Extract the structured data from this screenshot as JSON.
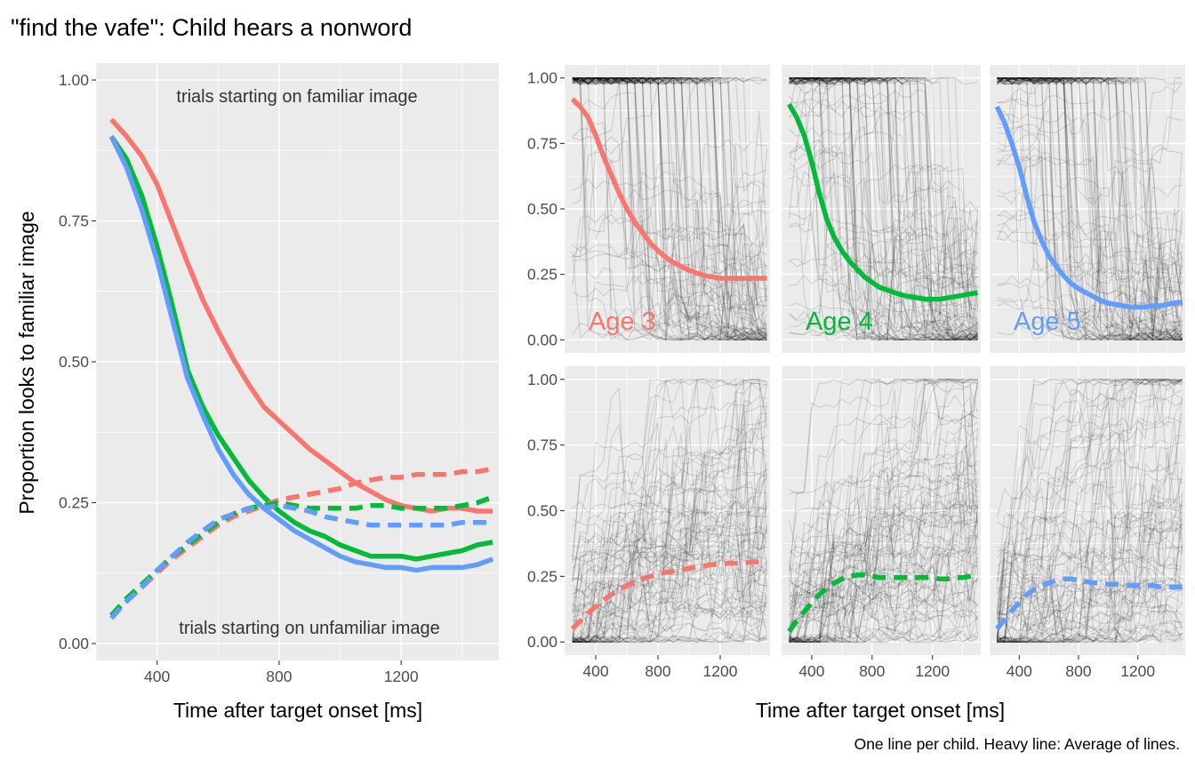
{
  "title": "\"find the vafe\": Child hears a nonword",
  "caption": "One line per child. Heavy line: Average of lines.",
  "colors": {
    "age3": "#F8766D",
    "age4": "#00BA38",
    "age5": "#619CFF"
  },
  "chart_data": [
    {
      "type": "line",
      "panel": "left",
      "xlabel": "Time after target onset [ms]",
      "ylabel": "Proportion looks to familiar image",
      "xlim": [
        200,
        1520
      ],
      "ylim": [
        -0.03,
        1.03
      ],
      "x_ticks": [
        "400",
        "800",
        "1200"
      ],
      "y_ticks": [
        "0.00",
        "0.25",
        "0.50",
        "0.75",
        "1.00"
      ],
      "annotations": [
        "trials starting on familiar image",
        "trials starting on unfamiliar image"
      ],
      "x": [
        250,
        300,
        350,
        400,
        450,
        500,
        550,
        600,
        650,
        700,
        750,
        800,
        850,
        900,
        950,
        1000,
        1050,
        1100,
        1150,
        1200,
        1250,
        1300,
        1350,
        1400,
        1450,
        1500
      ],
      "series": [
        {
          "group": "age3",
          "start": "familiar",
          "style": "solid",
          "values": [
            0.93,
            0.9,
            0.865,
            0.815,
            0.745,
            0.675,
            0.61,
            0.555,
            0.505,
            0.46,
            0.42,
            0.395,
            0.37,
            0.345,
            0.325,
            0.305,
            0.285,
            0.27,
            0.255,
            0.245,
            0.24,
            0.235,
            0.24,
            0.24,
            0.235,
            0.235
          ]
        },
        {
          "group": "age4",
          "start": "familiar",
          "style": "solid",
          "values": [
            0.9,
            0.86,
            0.795,
            0.705,
            0.6,
            0.485,
            0.42,
            0.37,
            0.33,
            0.29,
            0.26,
            0.235,
            0.215,
            0.2,
            0.19,
            0.175,
            0.165,
            0.155,
            0.155,
            0.155,
            0.15,
            0.155,
            0.16,
            0.165,
            0.175,
            0.18
          ]
        },
        {
          "group": "age5",
          "start": "familiar",
          "style": "solid",
          "values": [
            0.9,
            0.845,
            0.77,
            0.68,
            0.575,
            0.47,
            0.405,
            0.345,
            0.3,
            0.265,
            0.24,
            0.22,
            0.2,
            0.185,
            0.17,
            0.155,
            0.145,
            0.14,
            0.135,
            0.135,
            0.13,
            0.135,
            0.135,
            0.135,
            0.14,
            0.15
          ]
        },
        {
          "group": "age3",
          "start": "unfamiliar",
          "style": "dashed",
          "values": [
            0.05,
            0.075,
            0.1,
            0.125,
            0.15,
            0.17,
            0.19,
            0.21,
            0.225,
            0.235,
            0.245,
            0.255,
            0.26,
            0.265,
            0.27,
            0.275,
            0.285,
            0.29,
            0.295,
            0.295,
            0.3,
            0.3,
            0.3,
            0.305,
            0.305,
            0.31
          ]
        },
        {
          "group": "age4",
          "start": "unfamiliar",
          "style": "dashed",
          "values": [
            0.05,
            0.08,
            0.105,
            0.13,
            0.155,
            0.175,
            0.195,
            0.215,
            0.23,
            0.24,
            0.245,
            0.25,
            0.245,
            0.24,
            0.24,
            0.24,
            0.24,
            0.245,
            0.245,
            0.24,
            0.24,
            0.24,
            0.24,
            0.245,
            0.25,
            0.26
          ]
        },
        {
          "group": "age5",
          "start": "unfamiliar",
          "style": "dashed",
          "values": [
            0.045,
            0.075,
            0.1,
            0.13,
            0.155,
            0.18,
            0.2,
            0.22,
            0.23,
            0.24,
            0.24,
            0.245,
            0.24,
            0.235,
            0.225,
            0.22,
            0.215,
            0.21,
            0.21,
            0.21,
            0.21,
            0.21,
            0.21,
            0.215,
            0.215,
            0.215
          ]
        }
      ]
    },
    {
      "type": "line",
      "panel": "faceted",
      "xlabel": "Time after target onset [ms]",
      "xlim": [
        200,
        1520
      ],
      "ylim": [
        -0.05,
        1.05
      ],
      "x_ticks": [
        "400",
        "800",
        "1200"
      ],
      "y_ticks": [
        "0.00",
        "0.25",
        "0.50",
        "0.75",
        "1.00"
      ],
      "facet_labels": [
        "Age 3",
        "Age 4",
        "Age 5"
      ],
      "individual_lines": "One thin grey line per child",
      "x": [
        250,
        300,
        350,
        400,
        450,
        500,
        550,
        600,
        650,
        700,
        750,
        800,
        850,
        900,
        950,
        1000,
        1050,
        1100,
        1150,
        1200,
        1250,
        1300,
        1350,
        1400,
        1450,
        1500
      ],
      "series": [
        {
          "group": "age3",
          "row": "familiar",
          "style": "solid",
          "values": [
            0.92,
            0.89,
            0.85,
            0.78,
            0.7,
            0.63,
            0.56,
            0.5,
            0.45,
            0.41,
            0.37,
            0.34,
            0.315,
            0.295,
            0.28,
            0.265,
            0.255,
            0.245,
            0.24,
            0.235,
            0.235,
            0.235,
            0.235,
            0.235,
            0.235,
            0.235
          ]
        },
        {
          "group": "age4",
          "row": "familiar",
          "style": "solid",
          "values": [
            0.9,
            0.85,
            0.78,
            0.68,
            0.56,
            0.46,
            0.39,
            0.34,
            0.3,
            0.27,
            0.24,
            0.22,
            0.2,
            0.19,
            0.18,
            0.17,
            0.165,
            0.16,
            0.155,
            0.155,
            0.155,
            0.16,
            0.165,
            0.17,
            0.175,
            0.18
          ]
        },
        {
          "group": "age5",
          "row": "familiar",
          "style": "solid",
          "values": [
            0.89,
            0.83,
            0.75,
            0.66,
            0.55,
            0.45,
            0.38,
            0.32,
            0.28,
            0.245,
            0.215,
            0.195,
            0.18,
            0.165,
            0.15,
            0.14,
            0.135,
            0.13,
            0.125,
            0.125,
            0.125,
            0.13,
            0.13,
            0.135,
            0.14,
            0.145
          ]
        },
        {
          "group": "age3",
          "row": "unfamiliar",
          "style": "dashed",
          "values": [
            0.05,
            0.08,
            0.11,
            0.135,
            0.16,
            0.18,
            0.2,
            0.215,
            0.23,
            0.24,
            0.25,
            0.26,
            0.265,
            0.27,
            0.275,
            0.28,
            0.285,
            0.29,
            0.295,
            0.295,
            0.3,
            0.3,
            0.3,
            0.305,
            0.305,
            0.305
          ]
        },
        {
          "group": "age4",
          "row": "unfamiliar",
          "style": "dashed",
          "values": [
            0.04,
            0.08,
            0.115,
            0.15,
            0.18,
            0.205,
            0.225,
            0.24,
            0.25,
            0.255,
            0.255,
            0.25,
            0.245,
            0.245,
            0.245,
            0.245,
            0.245,
            0.245,
            0.245,
            0.245,
            0.24,
            0.24,
            0.245,
            0.245,
            0.25,
            0.255
          ]
        },
        {
          "group": "age5",
          "row": "unfamiliar",
          "style": "dashed",
          "values": [
            0.05,
            0.085,
            0.12,
            0.15,
            0.18,
            0.2,
            0.215,
            0.225,
            0.235,
            0.24,
            0.24,
            0.235,
            0.23,
            0.225,
            0.225,
            0.22,
            0.22,
            0.215,
            0.215,
            0.215,
            0.215,
            0.215,
            0.21,
            0.21,
            0.21,
            0.21
          ]
        }
      ]
    }
  ]
}
